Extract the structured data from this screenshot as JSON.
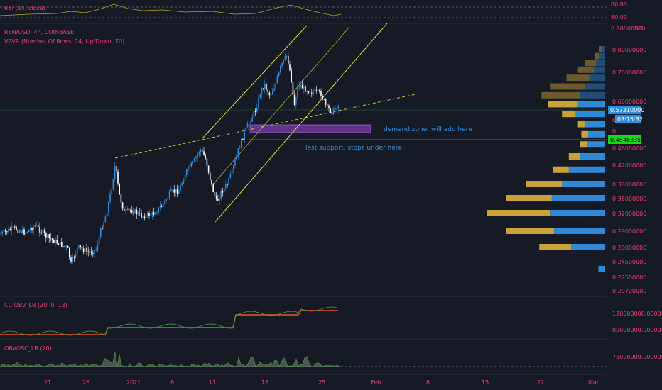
{
  "symbol": {
    "title": "REN/USD, 4h, COINBASE",
    "indicator": "VPVR (Number Of Rows, 24, Up/Down, 70)"
  },
  "top_pane": {
    "title": "RSI (14, close)",
    "levels": [
      "80.00",
      "60.00"
    ]
  },
  "price_axis": {
    "unit": "USD",
    "ticks": [
      "0.90000000",
      "0.80000000",
      "0.70000000",
      "0.60000000",
      "0.46000000",
      "0.42000000",
      "0.38000000",
      "0.35000000",
      "0.32000000",
      "0.29000000",
      "0.26000000",
      "0.24500000",
      "0.22500000",
      "0.20700000"
    ],
    "current_price": "0.57310000",
    "countdown": "03:15:32",
    "support_price": "0.48463355",
    "overlap_fragments": [
      "0.",
      "0.",
      "0."
    ]
  },
  "annotations": {
    "demand_zone": "demand zone, will add here",
    "last_support": "last support, stops under here"
  },
  "cci_pane": {
    "title": "CCIOBV_LB (20, 0, 13)",
    "ticks": [
      "120000000.00000000",
      "80000000.00000000"
    ]
  },
  "obv_pane": {
    "title": "OBVOSC_LB (20)",
    "ticks": [
      "75000000.00000000"
    ]
  },
  "time_axis": {
    "labels": [
      "21",
      "26",
      "2021",
      "6",
      "11",
      "18",
      "25",
      "Feb",
      "8",
      "15",
      "22",
      "Mar"
    ]
  },
  "colors": {
    "background": "#161a25",
    "up_candle": "#2f8fe0",
    "down_candle": "#ffffff",
    "channel": "#d6dd4a",
    "demand_zone": "#7d3fa8",
    "support": "#2aa14a",
    "vp_up": "#2f8fe0",
    "vp_down": "#d4a83a"
  },
  "chart_data": {
    "type": "candlestick",
    "price_range": [
      0.2,
      0.9
    ],
    "volume_profile_prices": [
      0.8,
      0.77,
      0.74,
      0.71,
      0.68,
      0.65,
      0.62,
      0.59,
      0.56,
      0.53,
      0.5,
      0.47,
      0.44,
      0.41,
      0.38,
      0.35,
      0.32,
      0.29,
      0.26,
      0.235
    ],
    "volume_profile_up": [
      3,
      5,
      8,
      10,
      14,
      18,
      22,
      24,
      26,
      18,
      15,
      16,
      22,
      32,
      38,
      47,
      48,
      45,
      30,
      6
    ],
    "volume_profile_down": [
      2,
      4,
      10,
      14,
      20,
      30,
      34,
      26,
      12,
      6,
      6,
      6,
      10,
      14,
      32,
      40,
      56,
      42,
      28,
      0
    ]
  }
}
